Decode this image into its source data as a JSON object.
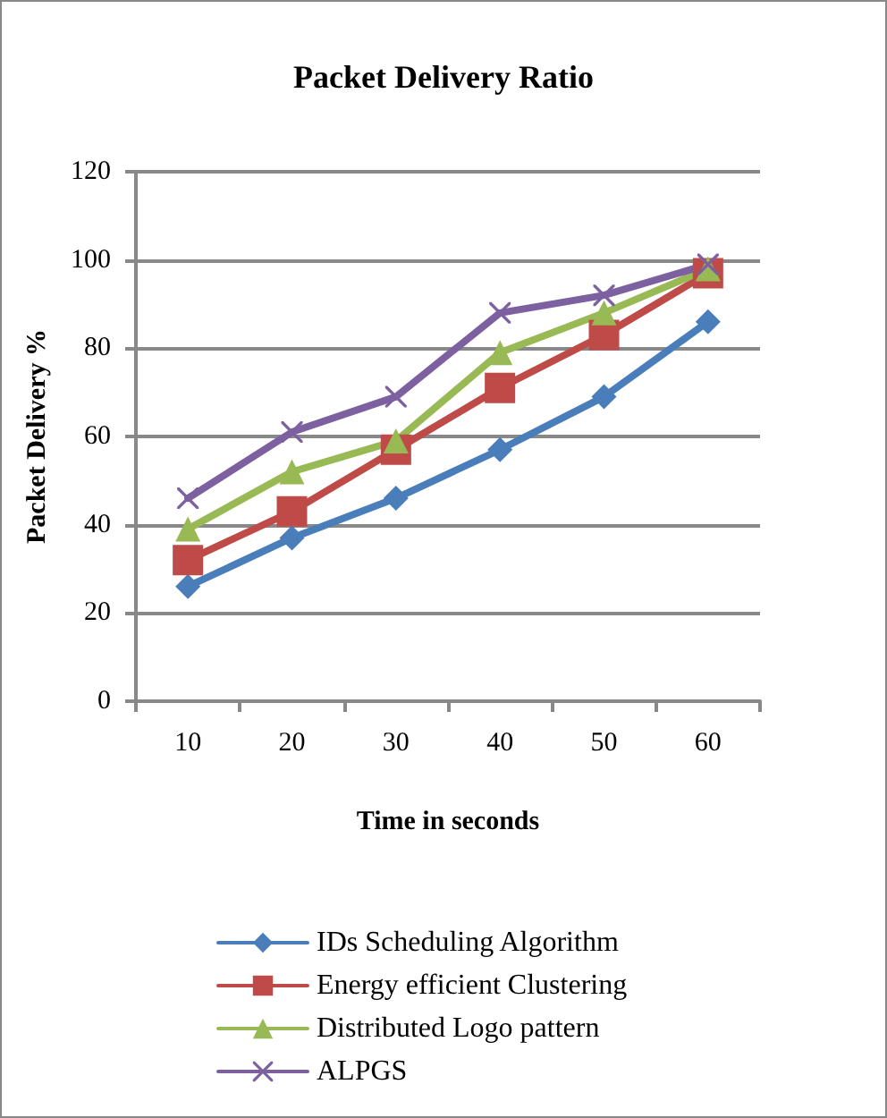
{
  "chart_data": {
    "type": "line",
    "title": "Packet Delivery Ratio",
    "xlabel": "Time in seconds",
    "ylabel": "Packet Delivery %",
    "categories": [
      "10",
      "20",
      "30",
      "40",
      "50",
      "60"
    ],
    "series": [
      {
        "name": "IDs Scheduling Algorithm",
        "color": "#4a7ebb",
        "marker": "diamond",
        "values": [
          26,
          37,
          46,
          57,
          69,
          86
        ]
      },
      {
        "name": "Energy efficient Clustering",
        "color": "#be4b48",
        "marker": "square",
        "values": [
          32,
          43,
          57,
          71,
          83,
          97
        ]
      },
      {
        "name": "Distributed Logo pattern",
        "color": "#98b954",
        "marker": "triangle",
        "values": [
          39,
          52,
          59,
          79,
          88,
          98
        ]
      },
      {
        "name": "ALPGS",
        "color": "#7d60a0",
        "marker": "cross",
        "values": [
          46,
          61,
          69,
          88,
          92,
          99
        ]
      }
    ],
    "ylim": [
      0,
      120
    ],
    "yticks": [
      0,
      20,
      40,
      60,
      80,
      100,
      120
    ],
    "grid": "y",
    "legend": "bottom"
  }
}
